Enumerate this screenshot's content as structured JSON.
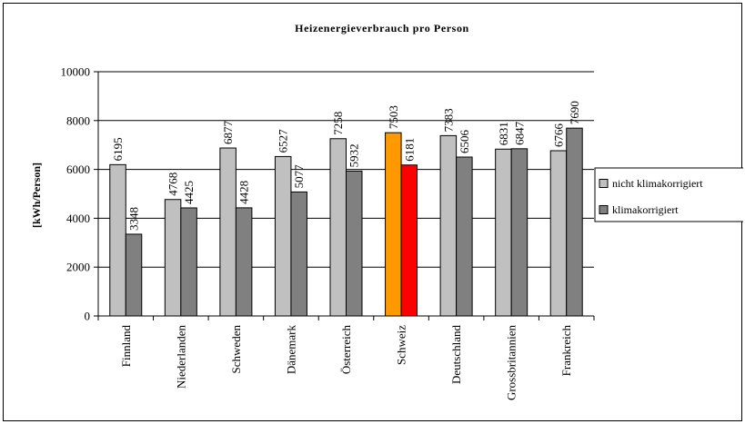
{
  "chart_data": {
    "type": "bar",
    "title": "Heizenergieverbrauch pro Person",
    "ylabel": "[kWh/Person]",
    "xlabel": "",
    "ylim": [
      0,
      10000
    ],
    "yticks": [
      0,
      2000,
      4000,
      6000,
      8000,
      10000
    ],
    "grid": true,
    "legend_position": "right",
    "categories": [
      "Finnland",
      "Niederlanden",
      "Schweden",
      "Dänemark",
      "Österreich",
      "Schweiz",
      "Deutschland",
      "Grossbritannien",
      "Frankreich"
    ],
    "series": [
      {
        "name": "nicht klimakorrigiert",
        "color": "#c0c0c0",
        "values": [
          6195,
          4768,
          6877,
          6527,
          7258,
          7503,
          7383,
          6831,
          6766
        ]
      },
      {
        "name": "klimakorrigiert",
        "color": "#808080",
        "values": [
          3348,
          4425,
          4428,
          5077,
          5932,
          6181,
          6506,
          6847,
          7690
        ]
      }
    ],
    "highlight": {
      "category": "Schweiz",
      "colors": [
        "#ff9900",
        "#ff0000"
      ]
    }
  }
}
